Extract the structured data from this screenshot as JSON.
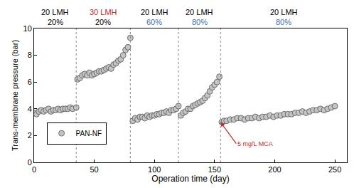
{
  "chart_data": {
    "type": "scatter",
    "x_label": "Operation time (day)",
    "y_label": "Trans-membrane pressure (bar)",
    "xlim": [
      0,
      260
    ],
    "xticks": [
      0,
      50,
      100,
      150,
      200,
      250
    ],
    "ylim": [
      0,
      10
    ],
    "yticks": [
      0,
      2,
      4,
      6,
      8,
      10
    ],
    "grid": false,
    "legend": "lower left",
    "marker": "circle",
    "phase_boundaries": [
      35,
      80,
      120,
      155
    ],
    "phases": [
      {
        "flux": "20 LMH",
        "recovery": "20%",
        "flux_color": "#000000",
        "recovery_color": "#000000"
      },
      {
        "flux": "30 LMH",
        "recovery": "20%",
        "flux_color": "#c0282d",
        "recovery_color": "#000000"
      },
      {
        "flux": "20 LMH",
        "recovery": "60%",
        "flux_color": "#000000",
        "recovery_color": "#3a6fb5"
      },
      {
        "flux": "20 LMH",
        "recovery": "80%",
        "flux_color": "#000000",
        "recovery_color": "#3a6fb5"
      },
      {
        "flux": "20 LMH",
        "recovery": "80%",
        "flux_color": "#000000",
        "recovery_color": "#3a6fb5"
      }
    ],
    "annotations": [
      {
        "text": "5 mg/L MCA",
        "x": 155,
        "y": 3.0,
        "color": "#c0282d"
      }
    ],
    "series": [
      {
        "name": "PAN-NF",
        "color": "#c4c4c4",
        "x": [
          0,
          2,
          4,
          6,
          8,
          10,
          12,
          14,
          16,
          18,
          20,
          22,
          24,
          26,
          28,
          30,
          32,
          35,
          36,
          38,
          40,
          42,
          44,
          46,
          48,
          50,
          52,
          54,
          56,
          58,
          60,
          62,
          64,
          66,
          68,
          70,
          72,
          74,
          76,
          78,
          80,
          82,
          84,
          86,
          88,
          90,
          92,
          94,
          96,
          98,
          100,
          102,
          104,
          106,
          108,
          110,
          112,
          114,
          116,
          118,
          120,
          122,
          124,
          126,
          128,
          130,
          132,
          134,
          136,
          138,
          140,
          142,
          144,
          146,
          148,
          150,
          152,
          154,
          156,
          158,
          160,
          163,
          166,
          169,
          172,
          175,
          178,
          181,
          184,
          187,
          190,
          193,
          196,
          199,
          202,
          205,
          208,
          211,
          214,
          217,
          220,
          223,
          226,
          229,
          232,
          235,
          238,
          241,
          244,
          247,
          250
        ],
        "values": [
          3.7,
          3.6,
          3.8,
          3.9,
          3.8,
          3.9,
          4.0,
          3.8,
          3.9,
          3.9,
          4.0,
          3.9,
          4.0,
          4.0,
          4.0,
          4.1,
          4.0,
          4.1,
          6.2,
          6.3,
          6.5,
          6.6,
          6.5,
          6.7,
          6.5,
          6.6,
          6.7,
          6.8,
          6.8,
          6.9,
          7.0,
          7.1,
          7.0,
          7.3,
          7.4,
          7.6,
          7.7,
          8.0,
          8.4,
          8.6,
          9.3,
          3.1,
          3.3,
          3.2,
          3.4,
          3.4,
          3.3,
          3.5,
          3.4,
          3.5,
          3.5,
          3.6,
          3.6,
          3.7,
          3.7,
          3.8,
          3.7,
          3.9,
          3.9,
          4.0,
          4.2,
          3.5,
          3.7,
          3.8,
          4.0,
          4.0,
          4.2,
          4.3,
          4.4,
          4.5,
          4.6,
          4.8,
          5.0,
          5.3,
          5.6,
          5.8,
          6.0,
          6.4,
          3.0,
          3.1,
          3.1,
          3.2,
          3.2,
          3.3,
          3.3,
          3.2,
          3.3,
          3.3,
          3.4,
          3.3,
          3.4,
          3.4,
          3.5,
          3.4,
          3.5,
          3.5,
          3.6,
          3.6,
          3.6,
          3.7,
          3.7,
          3.8,
          3.7,
          3.8,
          3.9,
          3.9,
          4.0,
          3.9,
          4.0,
          4.1,
          4.2
        ]
      }
    ]
  }
}
